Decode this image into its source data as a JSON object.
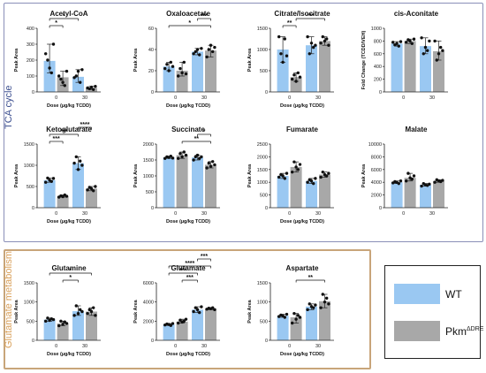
{
  "sections": {
    "tca_label": "TCA cycle",
    "glutamate_label": "Glutamate metabolism"
  },
  "legend": {
    "wt_label": "WT",
    "ko_label": "Pkm",
    "ko_superscript": "ΔDRE"
  },
  "colors": {
    "wt": "#9ac8f2",
    "ko": "#a8a8a8",
    "axis": "#222222"
  },
  "chart_data": [
    {
      "type": "bar",
      "title": "Acetyl-CoA",
      "ylabel": "Peak Area",
      "xlabel": "Dose (µg/kg TCDD)",
      "categories": [
        "0",
        "30"
      ],
      "ylim": [
        0,
        400
      ],
      "yticks": [
        0,
        100,
        200,
        300,
        400
      ],
      "series": [
        {
          "name": "WT",
          "values": [
            195,
            95
          ]
        },
        {
          "name": "Pkm ΔDRE",
          "values": [
            92,
            25
          ]
        }
      ],
      "points": [
        [
          [
            240,
            200,
            150,
            120,
            300
          ],
          [
            100,
            80,
            60,
            40,
            130
          ]
        ],
        [
          [
            90,
            100,
            130,
            60,
            140
          ],
          [
            25,
            20,
            30,
            15,
            35
          ]
        ]
      ],
      "sig": [
        {
          "from": [
            0,
            0
          ],
          "to": [
            0,
            1
          ],
          "label": "*"
        },
        {
          "from": [
            0,
            0
          ],
          "to": [
            1,
            0
          ],
          "label": "*"
        }
      ]
    },
    {
      "type": "bar",
      "title": "Oxaloacetate",
      "ylabel": "Peak Area",
      "xlabel": "Dose (µg/kg TCDD)",
      "categories": [
        "0",
        "30"
      ],
      "ylim": [
        0,
        60
      ],
      "yticks": [
        0,
        20,
        40,
        60
      ],
      "series": [
        {
          "name": "WT",
          "values": [
            24,
            38
          ]
        },
        {
          "name": "Pkm ΔDRE",
          "values": [
            20,
            39
          ]
        }
      ],
      "points": [
        [
          [
            22,
            26,
            20,
            28,
            24
          ],
          [
            15,
            22,
            18,
            28,
            17
          ]
        ],
        [
          [
            36,
            38,
            40,
            35,
            41
          ],
          [
            33,
            40,
            44,
            38,
            42
          ]
        ]
      ],
      "sig": [
        {
          "from": [
            0,
            0
          ],
          "to": [
            1,
            1
          ],
          "label": "*"
        },
        {
          "from": [
            1,
            0
          ],
          "to": [
            1,
            1
          ],
          "label": "***"
        }
      ]
    },
    {
      "type": "bar",
      "title": "Citrate/Isocitrate",
      "ylabel": "Peak Area",
      "xlabel": "Dose (µg/kg TCDD)",
      "categories": [
        "0",
        "30"
      ],
      "ylim": [
        0,
        1500
      ],
      "yticks": [
        0,
        500,
        1000,
        1500
      ],
      "series": [
        {
          "name": "WT",
          "values": [
            1000,
            1100
          ]
        },
        {
          "name": "Pkm ΔDRE",
          "values": [
            350,
            1200
          ]
        }
      ],
      "points": [
        [
          [
            1300,
            900,
            700,
            1250,
            850
          ],
          [
            300,
            400,
            250,
            450,
            350
          ]
        ],
        [
          [
            1300,
            900,
            1150,
            1050,
            1100
          ],
          [
            1150,
            1300,
            1200,
            1250,
            1100
          ]
        ]
      ],
      "sig": [
        {
          "from": [
            0,
            0
          ],
          "to": [
            0,
            1
          ],
          "label": "**"
        },
        {
          "from": [
            0,
            1
          ],
          "to": [
            1,
            1
          ],
          "label": "***"
        }
      ]
    },
    {
      "type": "bar",
      "title": "cis-Aconitate",
      "ylabel": "Fold Change (TCDD/VEH)",
      "xlabel": "",
      "categories": [
        "0",
        "30"
      ],
      "ylim": [
        0,
        1000
      ],
      "yticks": [
        0,
        200,
        400,
        600,
        800,
        1000
      ],
      "series": [
        {
          "name": "WT",
          "values": [
            760,
            720
          ]
        },
        {
          "name": "Pkm ΔDRE",
          "values": [
            800,
            640
          ]
        }
      ],
      "points": [
        [
          [
            780,
            740,
            760,
            720,
            790
          ],
          [
            780,
            820,
            800,
            760,
            830
          ]
        ],
        [
          [
            850,
            600,
            700,
            650,
            800
          ],
          [
            800,
            500,
            600,
            700,
            650
          ]
        ]
      ],
      "sig": []
    },
    {
      "type": "bar",
      "title": "Ketoglutarate",
      "ylabel": "Peak Area",
      "xlabel": "Dose (µg/kg TCDD)",
      "categories": [
        "0",
        "30"
      ],
      "ylim": [
        0,
        1500
      ],
      "yticks": [
        0,
        500,
        1000,
        1500
      ],
      "series": [
        {
          "name": "WT",
          "values": [
            650,
            1050
          ]
        },
        {
          "name": "Pkm ΔDRE",
          "values": [
            270,
            450
          ]
        }
      ],
      "points": [
        [
          [
            600,
            700,
            650,
            620,
            690
          ],
          [
            250,
            280,
            260,
            300,
            270
          ]
        ],
        [
          [
            1050,
            1200,
            900,
            1100,
            1000
          ],
          [
            420,
            480,
            450,
            400,
            500
          ]
        ]
      ],
      "sig": [
        {
          "from": [
            0,
            0
          ],
          "to": [
            0,
            1
          ],
          "label": "***"
        },
        {
          "from": [
            0,
            0
          ],
          "to": [
            1,
            0
          ],
          "label": "***"
        },
        {
          "from": [
            1,
            0
          ],
          "to": [
            1,
            1
          ],
          "label": "****"
        }
      ]
    },
    {
      "type": "bar",
      "title": "Succinate",
      "ylabel": "Peak Area",
      "xlabel": "Dose (µg/kg TCDD)",
      "categories": [
        "0",
        "30"
      ],
      "ylim": [
        0,
        2000
      ],
      "yticks": [
        0,
        500,
        1000,
        1500,
        2000
      ],
      "series": [
        {
          "name": "WT",
          "values": [
            1580,
            1580
          ]
        },
        {
          "name": "Pkm ΔDRE",
          "values": [
            1650,
            1350
          ]
        }
      ],
      "points": [
        [
          [
            1550,
            1600,
            1580,
            1620,
            1560
          ],
          [
            1550,
            1700,
            1600,
            1750,
            1650
          ]
        ],
        [
          [
            1500,
            1600,
            1650,
            1550,
            1600
          ],
          [
            1250,
            1400,
            1300,
            1450,
            1350
          ]
        ]
      ],
      "sig": [
        {
          "from": [
            0,
            1
          ],
          "to": [
            1,
            1
          ],
          "label": "**"
        },
        {
          "from": [
            1,
            0
          ],
          "to": [
            1,
            1
          ],
          "label": "*"
        }
      ]
    },
    {
      "type": "bar",
      "title": "Fumarate",
      "ylabel": "Peak Area",
      "xlabel": "Dose (µg/kg TCDD)",
      "categories": [
        "0",
        "30"
      ],
      "ylim": [
        0,
        2500
      ],
      "yticks": [
        0,
        500,
        1000,
        1500,
        2000,
        2500
      ],
      "series": [
        {
          "name": "WT",
          "values": [
            1250,
            1050
          ]
        },
        {
          "name": "Pkm ΔDRE",
          "values": [
            1600,
            1300
          ]
        }
      ],
      "points": [
        [
          [
            1200,
            1300,
            1250,
            1150,
            1350
          ],
          [
            1400,
            1800,
            1600,
            1500,
            1700
          ]
        ],
        [
          [
            1000,
            1100,
            1050,
            950,
            1150
          ],
          [
            1200,
            1400,
            1300,
            1250,
            1350
          ]
        ]
      ],
      "sig": []
    },
    {
      "type": "bar",
      "title": "Malate",
      "ylabel": "Peak Area",
      "xlabel": "",
      "categories": [
        "0",
        "30"
      ],
      "ylim": [
        0,
        10000
      ],
      "yticks": [
        0,
        2000,
        4000,
        6000,
        8000,
        10000
      ],
      "series": [
        {
          "name": "WT",
          "values": [
            4000,
            3600
          ]
        },
        {
          "name": "Pkm ΔDRE",
          "values": [
            4700,
            4200
          ]
        }
      ],
      "points": [
        [
          [
            3900,
            4100,
            4000,
            3800,
            4200
          ],
          [
            4200,
            5400,
            4700,
            4500,
            5000
          ]
        ],
        [
          [
            3400,
            3800,
            3600,
            3500,
            3700
          ],
          [
            4000,
            4400,
            4200,
            4100,
            4300
          ]
        ]
      ],
      "sig": []
    },
    {
      "type": "bar",
      "title": "Glutamine",
      "ylabel": "Peak Area",
      "xlabel": "Dose (µg/kg TCDD)",
      "categories": [
        "0",
        "30"
      ],
      "ylim": [
        0,
        1500
      ],
      "yticks": [
        0,
        500,
        1000,
        1500
      ],
      "series": [
        {
          "name": "WT",
          "values": [
            540,
            760
          ]
        },
        {
          "name": "Pkm ΔDRE",
          "values": [
            440,
            750
          ]
        }
      ],
      "points": [
        [
          [
            500,
            580,
            520,
            560,
            540
          ],
          [
            380,
            500,
            420,
            480,
            440
          ]
        ],
        [
          [
            650,
            900,
            700,
            800,
            750
          ],
          [
            700,
            800,
            750,
            850,
            650
          ]
        ]
      ],
      "sig": [
        {
          "from": [
            0,
            1
          ],
          "to": [
            1,
            0
          ],
          "label": "*"
        },
        {
          "from": [
            0,
            0
          ],
          "to": [
            1,
            1
          ],
          "label": "*"
        }
      ]
    },
    {
      "type": "bar",
      "title": "Glutamate",
      "ylabel": "Peak Area",
      "xlabel": "Dose (µg/kg TCDD)",
      "categories": [
        "0",
        "30"
      ],
      "ylim": [
        0,
        6000
      ],
      "yticks": [
        0,
        2000,
        4000,
        6000
      ],
      "series": [
        {
          "name": "WT",
          "values": [
            1650,
            3200
          ]
        },
        {
          "name": "Pkm ΔDRE",
          "values": [
            1950,
            3300
          ]
        }
      ],
      "points": [
        [
          [
            1600,
            1700,
            1650,
            1550,
            1750
          ],
          [
            1800,
            2100,
            1900,
            2000,
            2200
          ]
        ],
        [
          [
            3000,
            3400,
            3200,
            2900,
            3500
          ],
          [
            3250,
            3350,
            3300,
            3400,
            3200
          ]
        ]
      ],
      "sig": [
        {
          "from": [
            0,
            1
          ],
          "to": [
            1,
            0
          ],
          "label": "***"
        },
        {
          "from": [
            0,
            0
          ],
          "to": [
            1,
            0
          ],
          "label": "***"
        },
        {
          "from": [
            0,
            0
          ],
          "to": [
            1,
            1
          ],
          "label": "****"
        },
        {
          "from": [
            1,
            0
          ],
          "to": [
            1,
            1
          ],
          "label": "***"
        }
      ]
    },
    {
      "type": "bar",
      "title": "Aspartate",
      "ylabel": "Peak Area",
      "xlabel": "Dose (µg/kg TCDD)",
      "categories": [
        "0",
        "30"
      ],
      "ylim": [
        0,
        1500
      ],
      "yticks": [
        0,
        500,
        1000,
        1500
      ],
      "series": [
        {
          "name": "WT",
          "values": [
            640,
            880
          ]
        },
        {
          "name": "Pkm ΔDRE",
          "values": [
            600,
            1020
          ]
        }
      ],
      "points": [
        [
          [
            620,
            660,
            640,
            600,
            680
          ],
          [
            450,
            700,
            550,
            650,
            600
          ]
        ],
        [
          [
            800,
            950,
            880,
            850,
            920
          ],
          [
            850,
            1200,
            1000,
            1100,
            950
          ]
        ]
      ],
      "sig": [
        {
          "from": [
            0,
            1
          ],
          "to": [
            1,
            1
          ],
          "label": "**"
        }
      ]
    }
  ]
}
